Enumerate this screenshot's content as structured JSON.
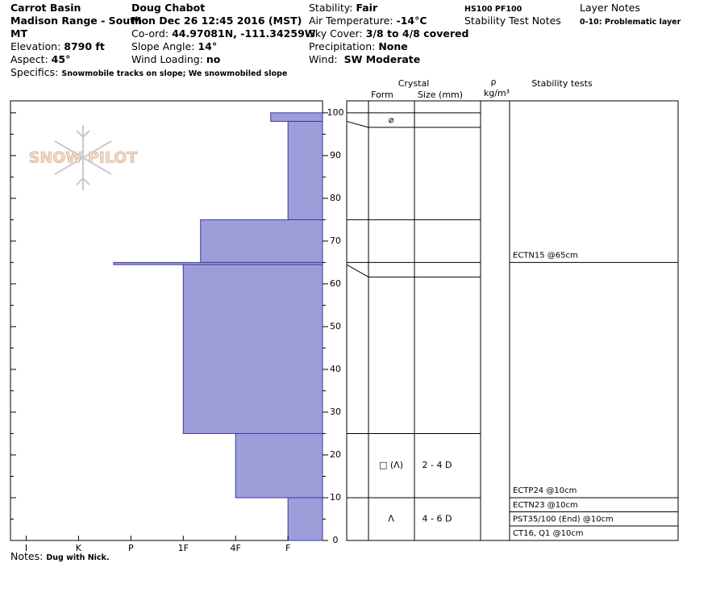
{
  "header": {
    "location": "Carrot Basin",
    "range": "Madison Range - South",
    "state": "MT",
    "elevation": {
      "label": "Elevation:",
      "value": "8790 ft"
    },
    "aspect": {
      "label": "Aspect:",
      "value": "45°"
    },
    "specifics": {
      "label": "Specifics:",
      "value": "Snowmobile tracks on slope; We snowmobiled slope"
    },
    "observer": "Doug Chabot",
    "date": "Mon Dec 26 12:45 2016 (MST)",
    "coord": {
      "label": "Co-ord:",
      "value": "44.97081N, -111.34259W"
    },
    "slope_angle": {
      "label": "Slope Angle:",
      "value": "14°"
    },
    "wind_loading": {
      "label": "Wind Loading:",
      "value": "no"
    },
    "stability": {
      "label": "Stability:",
      "value": "Fair"
    },
    "air_temperature": {
      "label": "Air Temperature:",
      "value": "-14°C"
    },
    "sky_cover": {
      "label": "Sky Cover:",
      "value": "3/8 to 4/8 covered"
    },
    "precipitation": {
      "label": "Precipitation:",
      "value": "None"
    },
    "wind": {
      "label": "Wind:",
      "value": "SW Moderate"
    },
    "hs_pf": "HS100 PF100",
    "stability_test_notes": "Stability Test Notes",
    "layer_notes_title": "Layer Notes",
    "layer_note": "0-10: Problematic layer"
  },
  "notes": {
    "label": "Notes:",
    "value": "Dug with Nick."
  },
  "chart_data": {
    "type": "snow-profile",
    "watermark": "SNOW PILOT",
    "color": "#9d9dda",
    "ylim": [
      0,
      102.8
    ],
    "yticks": [
      0,
      10,
      20,
      30,
      40,
      50,
      60,
      70,
      80,
      90,
      100
    ],
    "minor_yticks": [
      5,
      15,
      25,
      35,
      45,
      55,
      65,
      75,
      85,
      95
    ],
    "xlim": [
      6.3,
      0.34
    ],
    "xticks": [
      {
        "value": 6,
        "label": "I"
      },
      {
        "value": 5,
        "label": "K"
      },
      {
        "value": 4,
        "label": "P"
      },
      {
        "value": 3,
        "label": "1F"
      },
      {
        "value": 2,
        "label": "4F"
      },
      {
        "value": 1,
        "label": "F"
      }
    ],
    "layers": [
      {
        "top": 100,
        "bottom": 98,
        "hardness": 1.33,
        "form": "⌀"
      },
      {
        "top": 98,
        "bottom": 75,
        "hardness": 1
      },
      {
        "top": 75,
        "bottom": 65,
        "hardness": 2.67
      },
      {
        "top": 65,
        "bottom": 64.5,
        "hardness": 4.33
      },
      {
        "top": 64.5,
        "bottom": 25,
        "hardness": 3
      },
      {
        "top": 25,
        "bottom": 10,
        "hardness": 2,
        "form": "□ (Λ)",
        "size": "2 - 4 D"
      },
      {
        "top": 10,
        "bottom": 0,
        "hardness": 1,
        "form": "Λ",
        "size": "4 - 6 D"
      }
    ],
    "table_headers": {
      "crystal": "Crystal",
      "form": "Form",
      "size": "Size (mm)",
      "density_symbol": "ρ",
      "density_unit": "kg/m³",
      "stability_tests": "Stability tests"
    },
    "stability_tests": [
      {
        "height": 65,
        "tests": [
          "ECTN15 @65cm"
        ]
      },
      {
        "height": 10,
        "tests": [
          "ECTP24 @10cm",
          "ECTN23 @10cm",
          "PST35/100 (End) @10cm",
          "CT16, Q1 @10cm"
        ]
      }
    ]
  }
}
